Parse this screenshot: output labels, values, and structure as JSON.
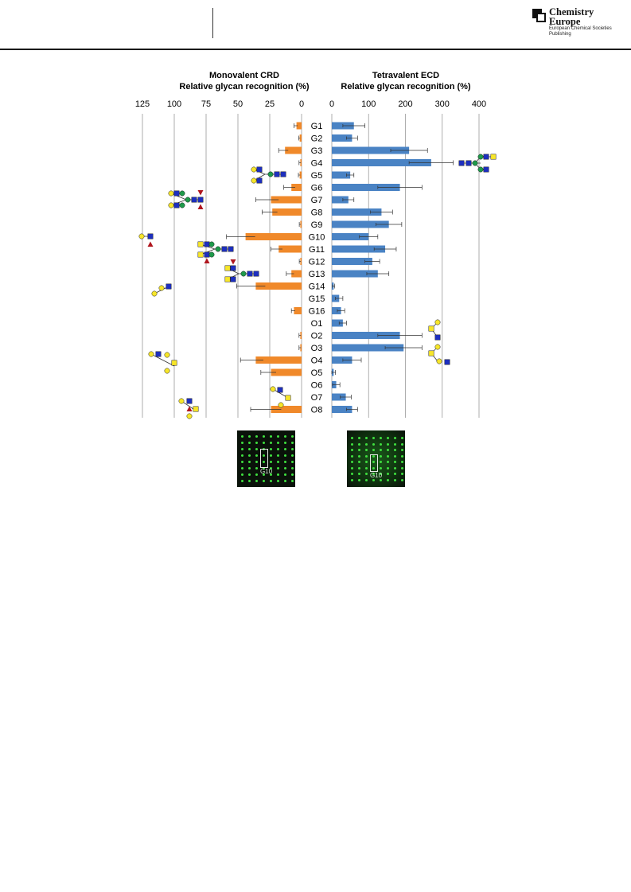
{
  "header": {
    "brand_line1": "Chemistry",
    "brand_line2": "Europe",
    "brand_sub": "European Chemical Societies Publishing"
  },
  "chart_data": [
    {
      "type": "bar",
      "title": "Monovalent CRD",
      "subtitle": "Relative glycan recognition (%)",
      "orientation": "horizontal-reversed",
      "xlim": [
        0,
        125
      ],
      "ticks": [
        125,
        100,
        75,
        50,
        25,
        0
      ],
      "grid": true,
      "color": "#f0892a",
      "categories": [
        "G1",
        "G2",
        "G3",
        "G4",
        "G5",
        "G6",
        "G7",
        "G8",
        "G9",
        "G10",
        "G11",
        "G12",
        "G13",
        "G14",
        "G15",
        "G16",
        "O1",
        "O2",
        "O3",
        "O4",
        "O5",
        "O6",
        "O7",
        "O8"
      ],
      "values": [
        4,
        1.5,
        13,
        1,
        1.5,
        8,
        24,
        23,
        1,
        44,
        18,
        1,
        8,
        36,
        0,
        6,
        0,
        1,
        1,
        36,
        24,
        0,
        0,
        24
      ],
      "errors": [
        2,
        0.8,
        5,
        1,
        1,
        6,
        12,
        8,
        0.8,
        15,
        6,
        0.8,
        4,
        15,
        0,
        2,
        0,
        1,
        1,
        12,
        8,
        0,
        0,
        16
      ]
    },
    {
      "type": "bar",
      "title": "Tetravalent ECD",
      "subtitle": "Relative glycan recognition (%)",
      "orientation": "horizontal",
      "xlim": [
        0,
        400
      ],
      "ticks": [
        0,
        100,
        200,
        300,
        400
      ],
      "grid": true,
      "color": "#4a83c4",
      "categories": [
        "G1",
        "G2",
        "G3",
        "G4",
        "G5",
        "G6",
        "G7",
        "G8",
        "G9",
        "G10",
        "G11",
        "G12",
        "G13",
        "G14",
        "G15",
        "G16",
        "O1",
        "O2",
        "O3",
        "O4",
        "O5",
        "O6",
        "O7",
        "O8"
      ],
      "values": [
        60,
        55,
        210,
        270,
        50,
        185,
        45,
        135,
        155,
        100,
        145,
        110,
        125,
        5,
        20,
        25,
        30,
        185,
        195,
        55,
        5,
        12,
        38,
        55
      ],
      "errors": [
        30,
        15,
        50,
        60,
        10,
        60,
        15,
        30,
        35,
        25,
        30,
        20,
        30,
        3,
        10,
        10,
        10,
        60,
        50,
        25,
        5,
        10,
        15,
        15
      ]
    }
  ],
  "panels": [
    {
      "label": "G10"
    },
    {
      "label": "G10"
    }
  ]
}
